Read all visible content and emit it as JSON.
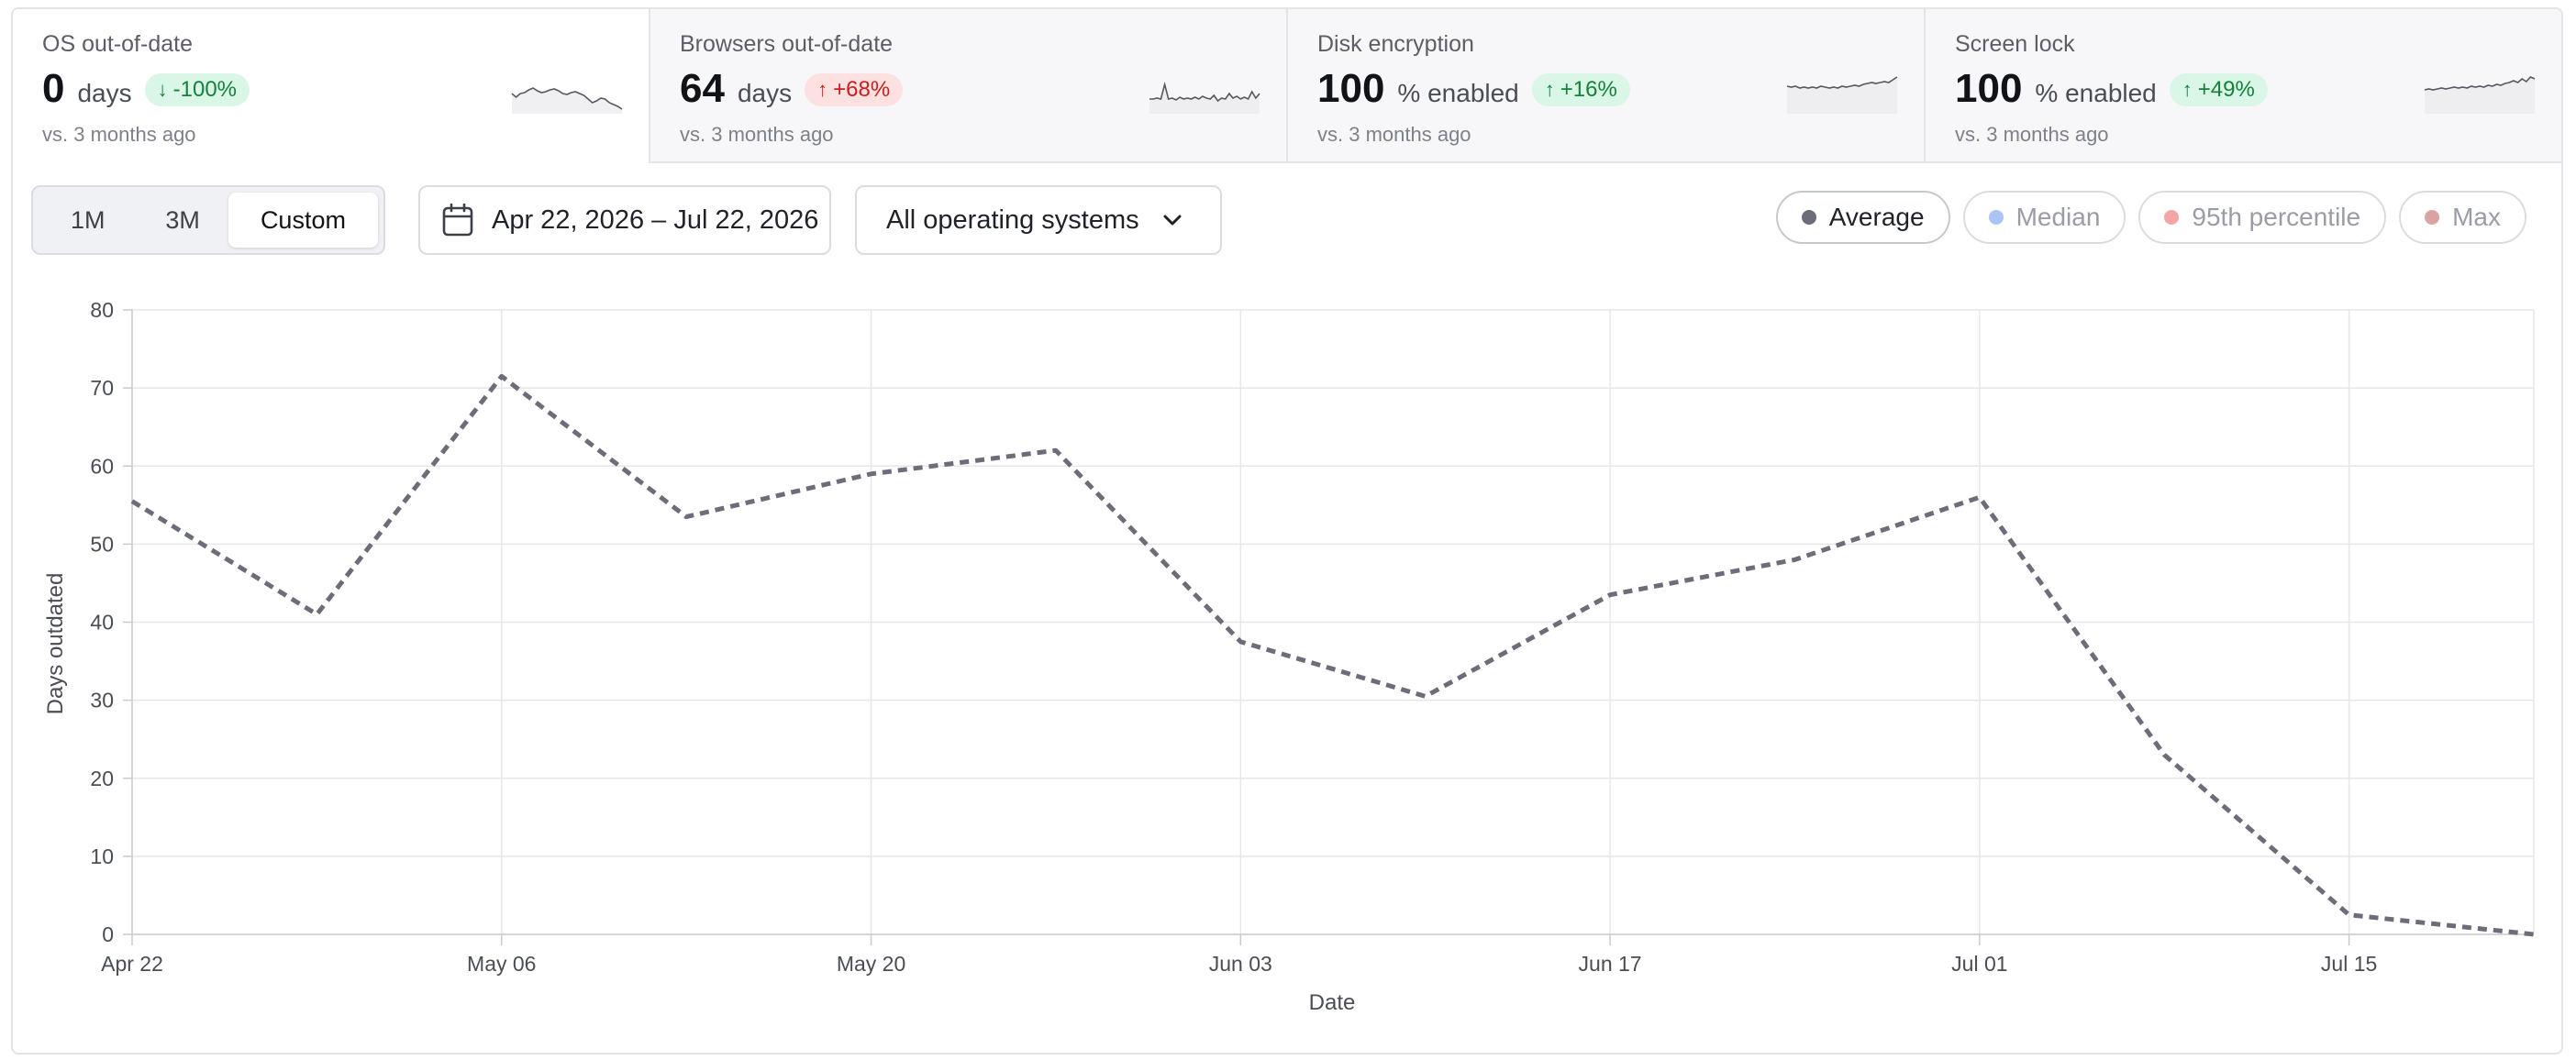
{
  "metrics": [
    {
      "title": "OS out-of-date",
      "value": "0",
      "unit": "days",
      "change": "-100%",
      "direction": "down",
      "tone": "good",
      "comparison": "vs. 3 months ago",
      "selected": true,
      "sparkline": [
        30,
        34,
        30,
        29,
        26,
        24,
        27,
        29,
        28,
        26,
        25,
        27,
        30,
        31,
        29,
        28,
        30,
        32,
        36,
        40,
        38,
        35,
        36,
        40,
        42,
        44,
        47
      ]
    },
    {
      "title": "Browsers out-of-date",
      "value": "64",
      "unit": "days",
      "change": "+68%",
      "direction": "up",
      "tone": "bad",
      "comparison": "vs. 3 months ago",
      "selected": false,
      "sparkline": [
        36,
        36,
        35,
        36,
        20,
        36,
        35,
        37,
        34,
        36,
        35,
        36,
        34,
        36,
        33,
        35,
        36,
        32,
        38,
        35,
        36,
        30,
        35,
        33,
        36,
        34,
        36,
        28,
        35,
        30
      ]
    },
    {
      "title": "Disk encryption",
      "value": "100",
      "unit": "% enabled",
      "change": "+16%",
      "direction": "up",
      "tone": "good",
      "comparison": "vs. 3 months ago",
      "selected": false,
      "sparkline": [
        22,
        23,
        22,
        24,
        23,
        24,
        23,
        24,
        22,
        23,
        24,
        23,
        24,
        22,
        23,
        22,
        21,
        22,
        20,
        19,
        18,
        19,
        18,
        17,
        18,
        15,
        12
      ]
    },
    {
      "title": "Screen lock",
      "value": "100",
      "unit": "% enabled",
      "change": "+49%",
      "direction": "up",
      "tone": "good",
      "comparison": "vs. 3 months ago",
      "selected": false,
      "sparkline": [
        26,
        25,
        26,
        25,
        24,
        25,
        24,
        23,
        24,
        23,
        24,
        22,
        23,
        22,
        23,
        21,
        22,
        20,
        21,
        19,
        18,
        16,
        18,
        14,
        17,
        12,
        14
      ]
    }
  ],
  "range_tabs": {
    "items": [
      "1M",
      "3M",
      "Custom"
    ],
    "active": "Custom"
  },
  "date_range": "Apr 22, 2026 – Jul 22, 2026",
  "os_filter": "All operating systems",
  "legend": [
    {
      "label": "Average",
      "color": "#6b6d78",
      "active": true
    },
    {
      "label": "Median",
      "color": "#a9c4f5",
      "active": false
    },
    {
      "label": "95th percentile",
      "color": "#f4a5a5",
      "active": false
    },
    {
      "label": "Max",
      "color": "#d9a3a3",
      "active": false
    }
  ],
  "chart_data": {
    "type": "line",
    "xlabel": "Date",
    "ylabel": "Days outdated",
    "ylim": [
      0,
      80
    ],
    "yticks": [
      0,
      10,
      20,
      30,
      40,
      50,
      60,
      70,
      80
    ],
    "xlim": [
      "Apr 22",
      "Jul 22"
    ],
    "xticks": [
      "Apr 22",
      "May 06",
      "May 20",
      "Jun 03",
      "Jun 17",
      "Jul 01",
      "Jul 15"
    ],
    "grid": true,
    "line_color": "#6b6d78",
    "line_style": "dashed",
    "series": [
      {
        "name": "Average",
        "points": [
          {
            "x": "Apr 22",
            "y": 55.5
          },
          {
            "x": "Apr 29",
            "y": 41
          },
          {
            "x": "May 06",
            "y": 71.5
          },
          {
            "x": "May 13",
            "y": 53.5
          },
          {
            "x": "May 20",
            "y": 59
          },
          {
            "x": "May 27",
            "y": 62
          },
          {
            "x": "Jun 03",
            "y": 37.5
          },
          {
            "x": "Jun 10",
            "y": 30.5
          },
          {
            "x": "Jun 17",
            "y": 43.5
          },
          {
            "x": "Jun 24",
            "y": 48
          },
          {
            "x": "Jul 01",
            "y": 56
          },
          {
            "x": "Jul 08",
            "y": 23
          },
          {
            "x": "Jul 15",
            "y": 2.5
          },
          {
            "x": "Jul 22",
            "y": 0
          }
        ]
      }
    ]
  }
}
